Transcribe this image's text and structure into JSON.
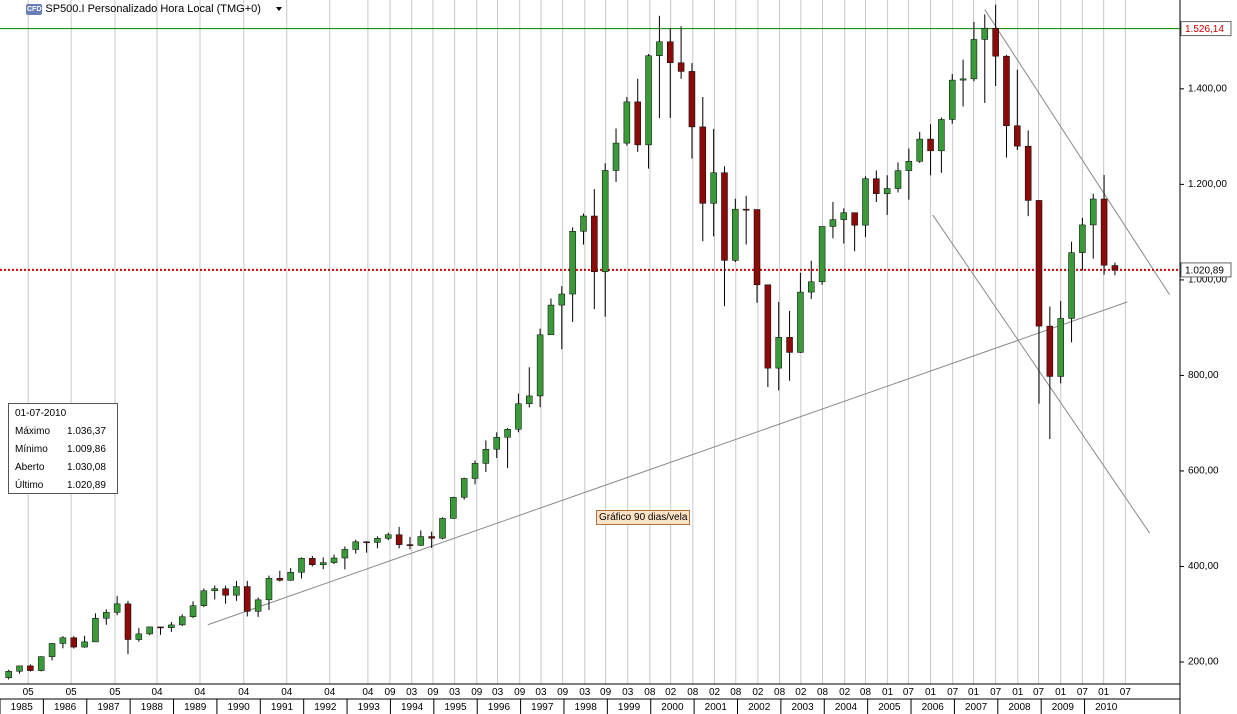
{
  "chart_data": {
    "type": "candlestick",
    "badge": "CFD",
    "title": "SP500.I Personalizado Hora Local (TMG+0)",
    "annotation": "Gráfico 90 dias/vela",
    "up_color": "#3a9a3a",
    "down_color": "#8b0a0a",
    "xlim": [
      1985,
      2012.2
    ],
    "ylim": [
      154,
      1586
    ],
    "yticks": [
      {
        "value": 200,
        "label": "200,00"
      },
      {
        "value": 400,
        "label": "400,00"
      },
      {
        "value": 600,
        "label": "600,00"
      },
      {
        "value": 800,
        "label": "800,00"
      },
      {
        "value": 1000,
        "label": "1.000,00"
      },
      {
        "value": 1200,
        "label": "1.200,00"
      },
      {
        "value": 1400,
        "label": "1.400,00"
      }
    ],
    "xticks": [
      {
        "value": 1985.65,
        "label": "05"
      },
      {
        "value": 1986.64,
        "label": "05"
      },
      {
        "value": 1987.65,
        "label": "05"
      },
      {
        "value": 1988.62,
        "label": "04"
      },
      {
        "value": 1989.61,
        "label": "04"
      },
      {
        "value": 1990.62,
        "label": "04"
      },
      {
        "value": 1991.61,
        "label": "04"
      },
      {
        "value": 1992.6,
        "label": "04"
      },
      {
        "value": 1993.48,
        "label": "04"
      },
      {
        "value": 1993.99,
        "label": "09"
      },
      {
        "value": 1994.49,
        "label": "03"
      },
      {
        "value": 1994.98,
        "label": "09"
      },
      {
        "value": 1995.48,
        "label": "03"
      },
      {
        "value": 1995.99,
        "label": "09"
      },
      {
        "value": 1996.47,
        "label": "03"
      },
      {
        "value": 1996.98,
        "label": "09"
      },
      {
        "value": 1997.47,
        "label": "03"
      },
      {
        "value": 1997.97,
        "label": "09"
      },
      {
        "value": 1998.48,
        "label": "03"
      },
      {
        "value": 1998.96,
        "label": "09"
      },
      {
        "value": 1999.47,
        "label": "03"
      },
      {
        "value": 1999.98,
        "label": "08"
      },
      {
        "value": 2000.46,
        "label": "02"
      },
      {
        "value": 2000.97,
        "label": "08"
      },
      {
        "value": 2001.47,
        "label": "02"
      },
      {
        "value": 2001.96,
        "label": "08"
      },
      {
        "value": 2002.47,
        "label": "02"
      },
      {
        "value": 2002.97,
        "label": "08"
      },
      {
        "value": 2003.46,
        "label": "02"
      },
      {
        "value": 2003.96,
        "label": "08"
      },
      {
        "value": 2004.47,
        "label": "02"
      },
      {
        "value": 2004.95,
        "label": "08"
      },
      {
        "value": 2005.46,
        "label": "01"
      },
      {
        "value": 2005.94,
        "label": "07"
      },
      {
        "value": 2006.45,
        "label": "01"
      },
      {
        "value": 2006.96,
        "label": "07"
      },
      {
        "value": 2007.44,
        "label": "01"
      },
      {
        "value": 2007.95,
        "label": "07"
      },
      {
        "value": 2008.46,
        "label": "01"
      },
      {
        "value": 2008.94,
        "label": "07"
      },
      {
        "value": 2009.45,
        "label": "01"
      },
      {
        "value": 2009.95,
        "label": "07"
      },
      {
        "value": 2010.44,
        "label": "01"
      },
      {
        "value": 2010.94,
        "label": "07"
      }
    ],
    "year_ticks": [
      1985,
      1986,
      1987,
      1988,
      1989,
      1990,
      1991,
      1992,
      1993,
      1994,
      1995,
      1996,
      1997,
      1998,
      1999,
      2000,
      2001,
      2002,
      2003,
      2004,
      2005,
      2006,
      2007,
      2008,
      2009,
      2010
    ],
    "x": [
      1985.2,
      1985.45,
      1985.7,
      1985.95,
      1986.2,
      1986.45,
      1986.7,
      1986.95,
      1987.2,
      1987.45,
      1987.7,
      1987.95,
      1988.2,
      1988.45,
      1988.7,
      1988.95,
      1989.2,
      1989.45,
      1989.7,
      1989.95,
      1990.2,
      1990.45,
      1990.7,
      1990.95,
      1991.2,
      1991.45,
      1991.7,
      1991.95,
      1992.2,
      1992.45,
      1992.7,
      1992.95,
      1993.2,
      1993.45,
      1993.7,
      1993.95,
      1994.2,
      1994.45,
      1994.7,
      1994.95,
      1995.2,
      1995.45,
      1995.7,
      1995.95,
      1996.2,
      1996.45,
      1996.7,
      1996.95,
      1997.2,
      1997.45,
      1997.7,
      1997.95,
      1998.2,
      1998.45,
      1998.7,
      1998.95,
      1999.2,
      1999.45,
      1999.7,
      1999.95,
      2000.2,
      2000.45,
      2000.7,
      2000.95,
      2001.2,
      2001.45,
      2001.7,
      2001.95,
      2002.2,
      2002.45,
      2002.7,
      2002.95,
      2003.2,
      2003.45,
      2003.7,
      2003.95,
      2004.2,
      2004.45,
      2004.7,
      2004.95,
      2005.2,
      2005.45,
      2005.7,
      2005.95,
      2006.2,
      2006.45,
      2006.7,
      2006.95,
      2007.2,
      2007.45,
      2007.7,
      2007.95,
      2008.2,
      2008.45,
      2008.7,
      2008.95,
      2009.2,
      2009.45,
      2009.7,
      2009.95,
      2010.2,
      2010.45,
      2010.7
    ],
    "open": [
      167.2,
      180.7,
      191.9,
      182.1,
      211.3,
      238.9,
      250.8,
      231.3,
      242.2,
      291.7,
      304.0,
      321.8,
      247.1,
      258.9,
      273.5,
      271.9,
      277.7,
      294.9,
      318.0,
      349.2,
      353.4,
      339.9,
      358.0,
      306.1,
      330.2,
      375.2,
      371.2,
      387.9,
      417.1,
      403.7,
      408.1,
      417.8,
      435.7,
      451.7,
      450.5,
      458.9,
      466.5,
      445.8,
      444.3,
      462.7,
      459.3,
      500.7,
      544.8,
      584.4,
      615.9,
      645.5,
      670.6,
      687.3,
      740.7,
      757.1,
      885.1,
      947.3,
      970.4,
      1101.8,
      1133.8,
      1017.0,
      1229.2,
      1286.4,
      1372.7,
      1282.7,
      1469.3,
      1498.6,
      1454.6,
      1436.5,
      1320.3,
      1160.3,
      1224.4,
      1040.9,
      1148.1,
      1147.4,
      989.8,
      815.3,
      879.8,
      848.2,
      974.5,
      996.0,
      1111.9,
      1126.2,
      1140.8,
      1114.6,
      1211.9,
      1180.6,
      1191.3,
      1228.8,
      1248.3,
      1294.8,
      1270.2,
      1335.9,
      1418.3,
      1420.9,
      1503.4,
      1526.8,
      1468.4,
      1322.7,
      1280.0,
      1166.4,
      903.3,
      797.9,
      919.3,
      1057.1,
      1115.1,
      1169.4,
      1030.08
    ],
    "high": [
      183.9,
      191.9,
      195.1,
      212.0,
      240.0,
      254.0,
      254.0,
      254.9,
      301.9,
      310.3,
      337.9,
      328.0,
      271.0,
      274.0,
      274.0,
      283.7,
      300.0,
      327.0,
      354.0,
      360.0,
      360.0,
      369.8,
      369.8,
      335.0,
      381.0,
      391.0,
      396.6,
      419.0,
      422.0,
      419.0,
      425.0,
      442.0,
      456.0,
      453.0,
      463.0,
      470.9,
      482.9,
      462.0,
      475.5,
      473.0,
      503.0,
      546.0,
      586.0,
      622.0,
      664.0,
      681.0,
      690.0,
      762.0,
      817.0,
      898.0,
      961.0,
      987.0,
      1110.0,
      1139.0,
      1190.0,
      1244.0,
      1317.0,
      1383.0,
      1421.0,
      1473.0,
      1553.0,
      1527.0,
      1531.0,
      1454.0,
      1383.0,
      1316.0,
      1238.0,
      1170.0,
      1176.0,
      1147.0,
      990.0,
      954.0,
      935.0,
      1015.0,
      1040.0,
      1112.0,
      1163.0,
      1150.0,
      1140.8,
      1217.0,
      1229.0,
      1219.0,
      1246.0,
      1275.0,
      1310.0,
      1326.0,
      1340.0,
      1431.0,
      1461.0,
      1540.0,
      1555.9,
      1576.0,
      1471.0,
      1440.0,
      1313.0,
      1167.0,
      944.0,
      956.0,
      1080.0,
      1130.0,
      1180.7,
      1219.8,
      1036.37
    ],
    "low": [
      163.4,
      175.6,
      180.2,
      180.2,
      203.5,
      228.8,
      228.3,
      230.0,
      242.2,
      278.0,
      298.0,
      216.5,
      242.6,
      256.1,
      256.9,
      263.0,
      275.3,
      292.0,
      315.0,
      331.0,
      322.0,
      328.0,
      295.5,
      294.5,
      309.0,
      368.6,
      370.0,
      375.0,
      400.0,
      394.5,
      405.0,
      394.0,
      426.9,
      429.0,
      438.0,
      455.0,
      438.0,
      435.9,
      443.0,
      438.9,
      457.0,
      500.0,
      540.0,
      572.0,
      598.0,
      627.0,
      605.9,
      681.0,
      733.0,
      733.5,
      891.0,
      855.0,
      912.0,
      1074.0,
      939.0,
      923.0,
      1205.0,
      1281.0,
      1268.0,
      1233.0,
      1339.0,
      1339.0,
      1421.0,
      1254.0,
      1081.0,
      1091.0,
      944.8,
      1037.0,
      1074.0,
      952.0,
      775.7,
      768.6,
      788.9,
      847.0,
      960.0,
      990.0,
      1087.0,
      1076.0,
      1060.0,
      1090.0,
      1163.0,
      1136.0,
      1183.0,
      1168.0,
      1245.0,
      1219.0,
      1224.0,
      1327.0,
      1363.0,
      1416.0,
      1370.6,
      1406.0,
      1256.0,
      1272.0,
      1133.5,
      741.0,
      666.8,
      783.3,
      869.3,
      1020.0,
      1044.5,
      1010.9,
      1009.86
    ],
    "close": [
      180.7,
      191.9,
      182.1,
      211.3,
      238.9,
      250.8,
      231.3,
      242.2,
      291.7,
      304.0,
      321.8,
      247.1,
      258.9,
      273.5,
      271.9,
      277.7,
      294.9,
      318.0,
      349.2,
      353.4,
      339.9,
      358.0,
      306.1,
      330.2,
      375.2,
      371.2,
      387.9,
      417.1,
      403.7,
      408.1,
      417.8,
      435.7,
      451.7,
      450.5,
      458.9,
      466.5,
      445.8,
      444.3,
      462.7,
      459.3,
      500.7,
      544.8,
      584.4,
      615.9,
      645.5,
      670.6,
      687.3,
      740.7,
      757.1,
      885.1,
      947.3,
      970.4,
      1101.8,
      1133.8,
      1017.0,
      1229.2,
      1286.4,
      1372.7,
      1282.7,
      1469.3,
      1498.6,
      1454.6,
      1436.5,
      1320.3,
      1160.3,
      1224.4,
      1040.9,
      1148.1,
      1147.4,
      989.8,
      815.3,
      879.8,
      848.2,
      974.5,
      996.0,
      1111.9,
      1126.2,
      1140.8,
      1114.6,
      1211.9,
      1180.6,
      1191.3,
      1228.8,
      1248.3,
      1294.8,
      1270.2,
      1335.9,
      1418.3,
      1420.9,
      1503.4,
      1526.8,
      1468.4,
      1322.7,
      1280.0,
      1166.4,
      903.3,
      797.9,
      919.3,
      1057.1,
      1115.1,
      1169.4,
      1030.7,
      1020.89
    ],
    "hlines": [
      {
        "value": 1526.14,
        "label": "1.526,14",
        "color": "#008000",
        "label_color": "#cc0000",
        "style": "solid"
      },
      {
        "value": 1020.89,
        "label": "1.020,89",
        "color": "#cc0000",
        "label_color": "#000000",
        "style": "dotted"
      }
    ],
    "trendlines": [
      {
        "x": [
          1989.79,
          2010.99
        ],
        "y": [
          278,
          954
        ]
      },
      {
        "x": [
          2007.7,
          2011.96
        ],
        "y": [
          1566,
          969
        ]
      },
      {
        "x": [
          2006.5,
          2011.5
        ],
        "y": [
          1136,
          470
        ]
      }
    ],
    "info_box": {
      "title": "01-07-2010",
      "labels": [
        "Máximo",
        "Mínimo",
        "Aberto",
        "Último"
      ],
      "values": [
        1036.37,
        1009.86,
        1030.08,
        1020.89
      ],
      "value_labels": [
        "1.036,37",
        "1.009,86",
        "1.030,08",
        "1.020,89"
      ]
    }
  }
}
